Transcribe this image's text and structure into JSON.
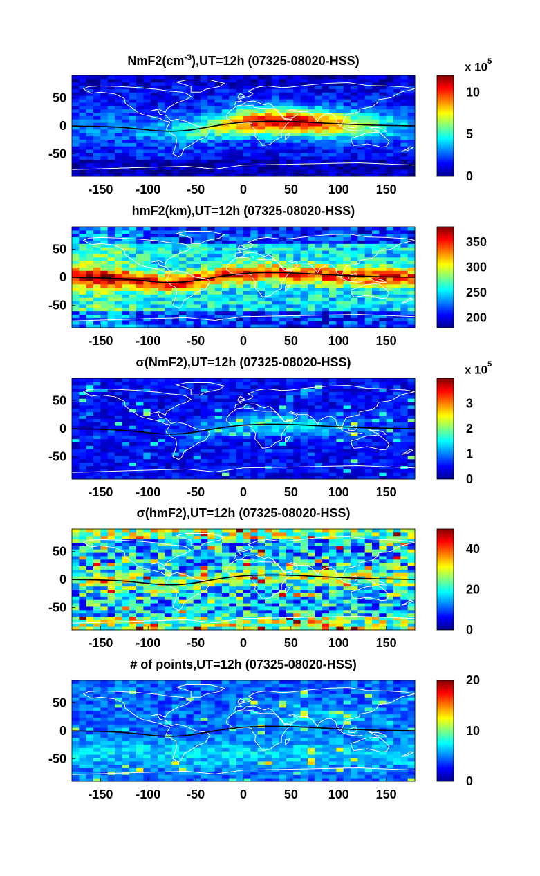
{
  "chart_data": [
    {
      "type": "heatmap",
      "title": "NmF2(cm⁻³),UT=12h (07325-08020-HSS)",
      "title_parts": {
        "pre": "NmF2(cm",
        "sup": "-3",
        "post": "),UT=12h (07325-08020-HSS)"
      },
      "xlim": [
        -180,
        180
      ],
      "ylim": [
        -90,
        90
      ],
      "xticks": [
        "-150",
        "-100",
        "-50",
        "0",
        "50",
        "100",
        "150"
      ],
      "yticks": [
        "50",
        "0",
        "-50"
      ],
      "colorbar": {
        "range": [
          0,
          12
        ],
        "ticks": [
          "0",
          "5",
          "10"
        ],
        "multiplier": "x 10",
        "multiplier_exp": "5"
      },
      "pattern": "Equatorial band of high NmF2 (~8-12 x10^5) between lon -30 and 130, background ~1-3 x10^5",
      "overlays": [
        "coastlines",
        "magnetic equator"
      ]
    },
    {
      "type": "heatmap",
      "title": "hmF2(km),UT=12h (07325-08020-HSS)",
      "title_parts": {
        "pre": "hmF2(km),UT=12h (07325-08020-HSS)",
        "sup": "",
        "post": ""
      },
      "xlim": [
        -180,
        180
      ],
      "ylim": [
        -90,
        90
      ],
      "xticks": [
        "-150",
        "-100",
        "-50",
        "0",
        "50",
        "100",
        "150"
      ],
      "yticks": [
        "50",
        "0",
        "-50"
      ],
      "colorbar": {
        "range": [
          180,
          380
        ],
        "ticks": [
          "200",
          "250",
          "300",
          "350"
        ],
        "multiplier": "",
        "multiplier_exp": ""
      },
      "pattern": "High hmF2 (~320-370 km) along dip equator, ~220-260 km at mid-latitudes",
      "overlays": [
        "coastlines",
        "magnetic equator"
      ]
    },
    {
      "type": "heatmap",
      "title": "σ(NmF2),UT=12h (07325-08020-HSS)",
      "title_parts": {
        "pre": "σ(NmF2),UT=12h (07325-08020-HSS)",
        "sup": "",
        "post": ""
      },
      "xlim": [
        -180,
        180
      ],
      "ylim": [
        -90,
        90
      ],
      "xticks": [
        "-150",
        "-100",
        "-50",
        "0",
        "50",
        "100",
        "150"
      ],
      "yticks": [
        "50",
        "0",
        "-50"
      ],
      "colorbar": {
        "range": [
          0,
          4
        ],
        "ticks": [
          "0",
          "1",
          "2",
          "3"
        ],
        "multiplier": "x 10",
        "multiplier_exp": "5"
      },
      "pattern": "Mostly low variability (~0.3-1 x10^5), scattered patches to 2-3 x10^5 near equator",
      "overlays": [
        "coastlines",
        "magnetic equator"
      ]
    },
    {
      "type": "heatmap",
      "title": "σ(hmF2),UT=12h (07325-08020-HSS)",
      "title_parts": {
        "pre": "σ(hmF2),UT=12h (07325-08020-HSS)",
        "sup": "",
        "post": ""
      },
      "xlim": [
        -180,
        180
      ],
      "ylim": [
        -90,
        90
      ],
      "xticks": [
        "-150",
        "-100",
        "-50",
        "0",
        "50",
        "100",
        "150"
      ],
      "yticks": [
        "50",
        "0",
        "-50"
      ],
      "colorbar": {
        "range": [
          0,
          50
        ],
        "ticks": [
          "0",
          "20",
          "40"
        ],
        "multiplier": "",
        "multiplier_exp": ""
      },
      "pattern": "Noisy field ~15-30 km, higher values (~35-45) near equator and polar edges",
      "overlays": [
        "coastlines",
        "magnetic equator"
      ]
    },
    {
      "type": "heatmap",
      "title": "# of points,UT=12h (07325-08020-HSS)",
      "title_parts": {
        "pre": "# of points,UT=12h (07325-08020-HSS)",
        "sup": "",
        "post": ""
      },
      "xlim": [
        -180,
        180
      ],
      "ylim": [
        -90,
        90
      ],
      "xticks": [
        "-150",
        "-100",
        "-50",
        "0",
        "50",
        "100",
        "150"
      ],
      "yticks": [
        "50",
        "0",
        "-50"
      ],
      "colorbar": {
        "range": [
          0,
          20
        ],
        "ticks": [
          "0",
          "10",
          "20"
        ],
        "multiplier": "",
        "multiplier_exp": ""
      },
      "pattern": "Counts mostly 3-8, up to ~12-15 in scattered cells",
      "overlays": [
        "coastlines",
        "magnetic equator"
      ]
    }
  ]
}
